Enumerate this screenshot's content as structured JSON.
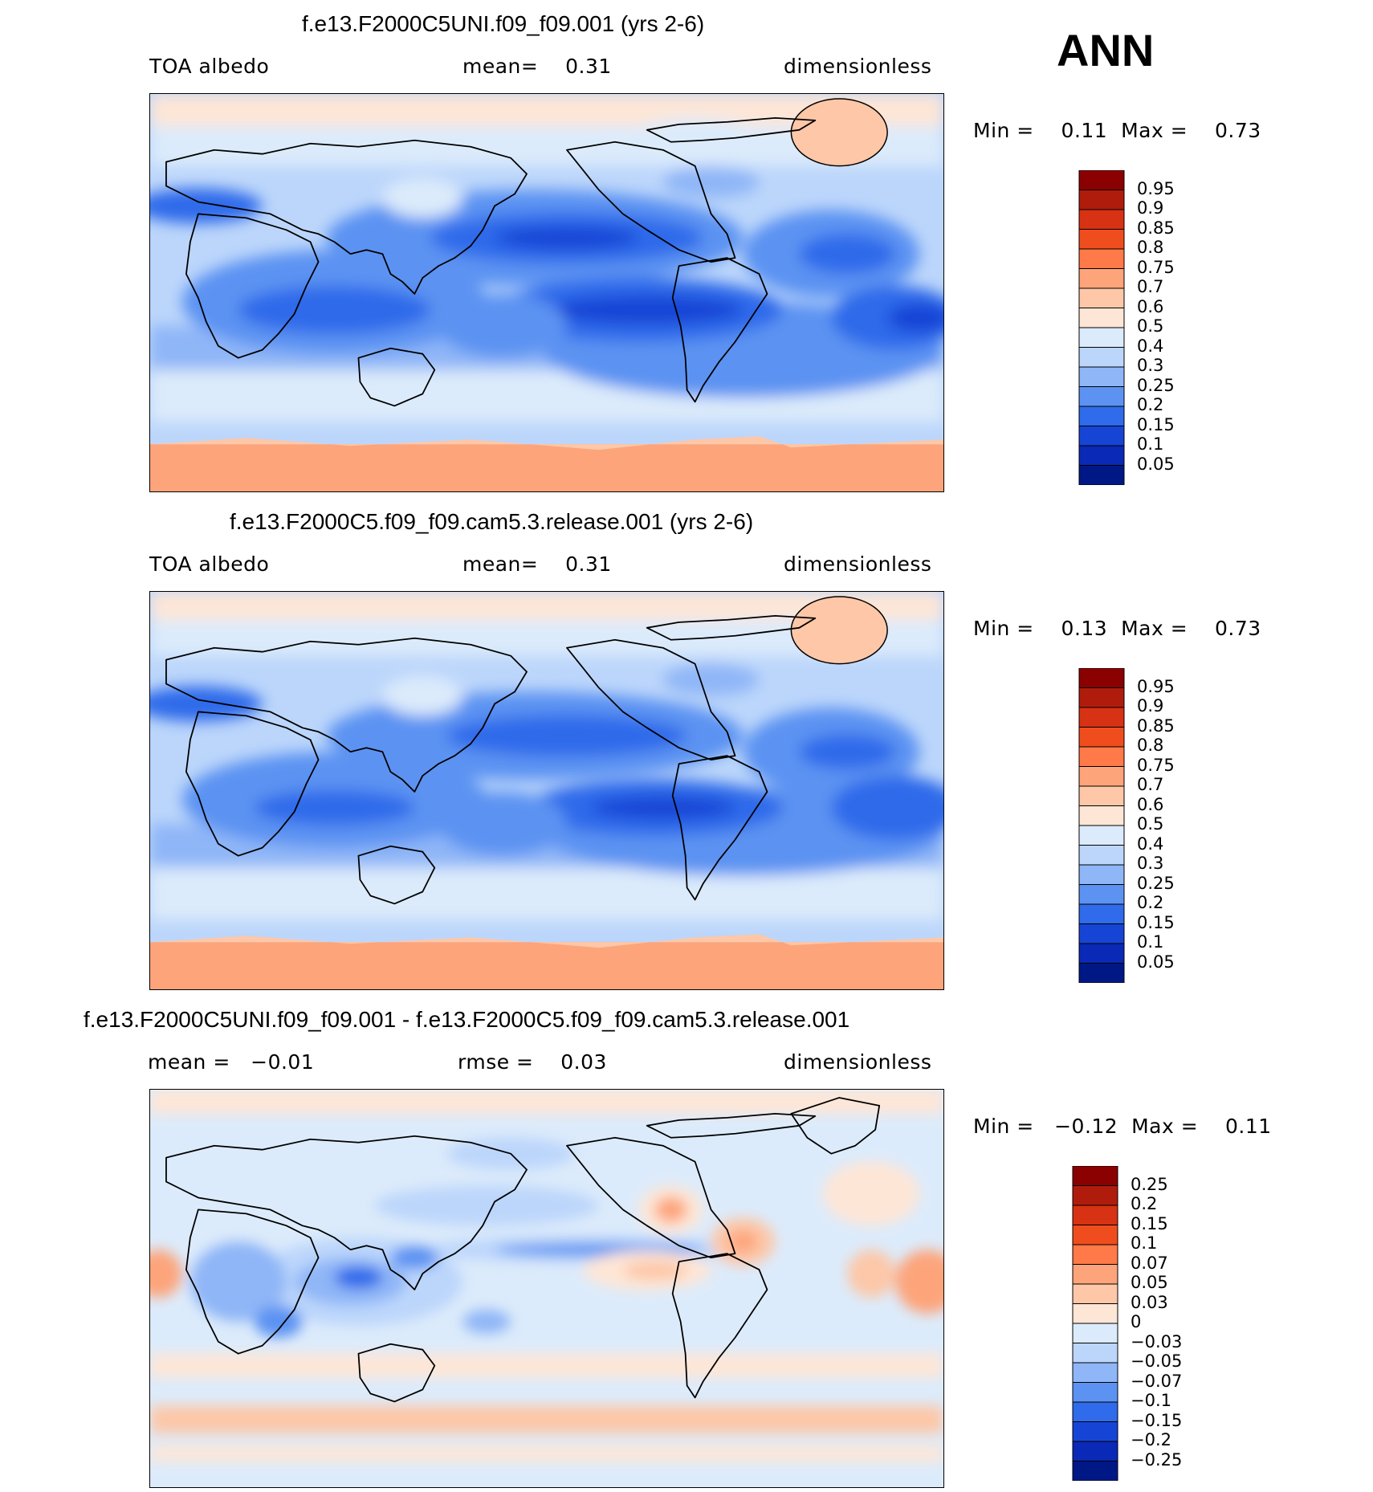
{
  "season": "ANN",
  "panels": [
    {
      "title": "f.e13.F2000C5UNI.f09_f09.001 (yrs 2-6)",
      "variable": "TOA albedo",
      "stat1": "mean=    0.31",
      "units": "dimensionless",
      "minmax": "Min =    0.11  Max =    0.73"
    },
    {
      "title": "f.e13.F2000C5.f09_f09.cam5.3.release.001 (yrs 2-6)",
      "variable": "TOA albedo",
      "stat1": "mean=    0.31",
      "units": "dimensionless",
      "minmax": "Min =    0.13  Max =    0.73"
    },
    {
      "title": "f.e13.F2000C5UNI.f09_f09.001 - f.e13.F2000C5.f09_f09.cam5.3.release.001",
      "variable": "mean =   −0.01",
      "stat1": "rmse =    0.03",
      "units": "dimensionless",
      "minmax": "Min =   −0.12  Max =    0.11"
    }
  ],
  "colorbar_abs": {
    "labels": [
      "0.95",
      "0.9",
      "0.85",
      "0.8",
      "0.75",
      "0.7",
      "0.6",
      "0.5",
      "0.4",
      "0.3",
      "0.25",
      "0.2",
      "0.15",
      "0.1",
      "0.05"
    ],
    "colors": [
      "#8b0000",
      "#b01c0c",
      "#d83214",
      "#f04d1e",
      "#ff7a48",
      "#fda47a",
      "#fdc7a8",
      "#fee6d6",
      "#dcebfb",
      "#bcd6fb",
      "#8fb6f7",
      "#5c93f2",
      "#2f6bea",
      "#1645d6",
      "#0a29b6",
      "#001886"
    ]
  },
  "colorbar_diff": {
    "labels": [
      "0.25",
      "0.2",
      "0.15",
      "0.1",
      "0.07",
      "0.05",
      "0.03",
      "0",
      "−0.03",
      "−0.05",
      "−0.07",
      "−0.1",
      "−0.15",
      "−0.2",
      "−0.25"
    ],
    "colors": [
      "#8b0000",
      "#b01c0c",
      "#d83214",
      "#f04d1e",
      "#ff7a48",
      "#fda47a",
      "#fdc7a8",
      "#fee6d6",
      "#dcebfb",
      "#bcd6fb",
      "#8fb6f7",
      "#5c93f2",
      "#2f6bea",
      "#1645d6",
      "#0a29b6",
      "#001886"
    ]
  }
}
